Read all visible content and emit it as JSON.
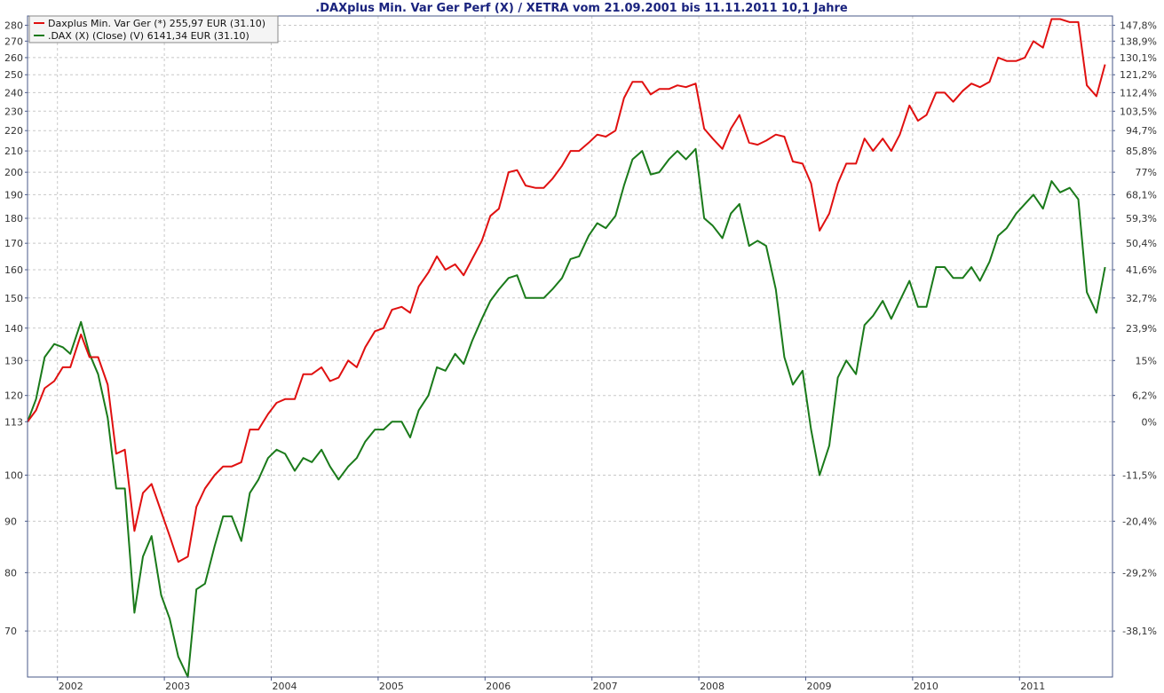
{
  "chart_data": {
    "type": "line",
    "title": ".DAXplus Min. Var Ger Perf (X) / XETRA vom 21.09.2001 bis 11.11.2011 10,1 Jahre",
    "x_range": [
      2001.72,
      2011.87
    ],
    "y_scale": "log",
    "ylim": [
      63,
      286
    ],
    "y_ticks": [
      70,
      80,
      90,
      100,
      113,
      120,
      130,
      140,
      150,
      160,
      170,
      180,
      190,
      200,
      210,
      220,
      230,
      240,
      250,
      260,
      270,
      280
    ],
    "y2_ticks": [
      "147,8%",
      "138,9%",
      "130,1%",
      "121,2%",
      "112,4%",
      "103,5%",
      "94,7%",
      "85,8%",
      "77%",
      "68,1%",
      "59,3%",
      "50,4%",
      "41,6%",
      "32,7%",
      "23,9%",
      "15%",
      "6,2%",
      "0%",
      "-11,5%",
      "-20,4%",
      "-29,2%",
      "-38,1%"
    ],
    "x_ticks": [
      {
        "label": "2002",
        "x": 2002.0
      },
      {
        "label": "2003",
        "x": 2003.0
      },
      {
        "label": "2004",
        "x": 2004.0
      },
      {
        "label": "2005",
        "x": 2005.0
      },
      {
        "label": "2006",
        "x": 2006.0
      },
      {
        "label": "2007",
        "x": 2007.0
      },
      {
        "label": "2008",
        "x": 2008.0
      },
      {
        "label": "2009",
        "x": 2009.0
      },
      {
        "label": "2010",
        "x": 2010.0
      },
      {
        "label": "2011",
        "x": 2011.0
      }
    ],
    "legend_position": "top-left",
    "grid": true,
    "series": [
      {
        "name": "Daxplus Min. Var Ger (*) 255,97 EUR (31.10)",
        "color": "#e01010",
        "x": [
          2001.72,
          2001.8,
          2001.88,
          2001.97,
          2002.05,
          2002.12,
          2002.22,
          2002.3,
          2002.38,
          2002.47,
          2002.55,
          2002.63,
          2002.72,
          2002.8,
          2002.88,
          2002.97,
          2003.05,
          2003.13,
          2003.22,
          2003.3,
          2003.38,
          2003.47,
          2003.55,
          2003.63,
          2003.72,
          2003.8,
          2003.88,
          2003.97,
          2004.05,
          2004.13,
          2004.22,
          2004.3,
          2004.38,
          2004.47,
          2004.55,
          2004.63,
          2004.72,
          2004.8,
          2004.88,
          2004.97,
          2005.05,
          2005.13,
          2005.22,
          2005.3,
          2005.38,
          2005.47,
          2005.55,
          2005.63,
          2005.72,
          2005.8,
          2005.88,
          2005.97,
          2006.05,
          2006.13,
          2006.22,
          2006.3,
          2006.38,
          2006.47,
          2006.55,
          2006.63,
          2006.72,
          2006.8,
          2006.88,
          2006.97,
          2007.05,
          2007.13,
          2007.22,
          2007.3,
          2007.38,
          2007.47,
          2007.55,
          2007.63,
          2007.72,
          2007.8,
          2007.88,
          2007.97,
          2008.05,
          2008.13,
          2008.22,
          2008.3,
          2008.38,
          2008.47,
          2008.55,
          2008.63,
          2008.72,
          2008.8,
          2008.88,
          2008.97,
          2009.05,
          2009.13,
          2009.22,
          2009.3,
          2009.38,
          2009.47,
          2009.55,
          2009.63,
          2009.72,
          2009.8,
          2009.88,
          2009.97,
          2010.05,
          2010.13,
          2010.22,
          2010.3,
          2010.38,
          2010.47,
          2010.55,
          2010.63,
          2010.72,
          2010.8,
          2010.88,
          2010.97,
          2011.05,
          2011.13,
          2011.22,
          2011.3,
          2011.38,
          2011.47,
          2011.55,
          2011.63,
          2011.72,
          2011.8
        ],
        "values": [
          113,
          116,
          122,
          124,
          128,
          128,
          138,
          131,
          131,
          123,
          105,
          106,
          88,
          96,
          98,
          92,
          87,
          82,
          83,
          93,
          97,
          100,
          102,
          102,
          103,
          111,
          111,
          115,
          118,
          119,
          119,
          126,
          126,
          128,
          124,
          125,
          130,
          128,
          134,
          139,
          140,
          146,
          147,
          145,
          154,
          159,
          165,
          160,
          162,
          158,
          164,
          171,
          181,
          184,
          200,
          201,
          194,
          193,
          193,
          197,
          203,
          210,
          210,
          214,
          218,
          217,
          220,
          237,
          246,
          246,
          239,
          242,
          242,
          244,
          243,
          245,
          221,
          216,
          211,
          221,
          228,
          214,
          213,
          215,
          218,
          217,
          205,
          204,
          195,
          175,
          182,
          195,
          204,
          204,
          216,
          210,
          216,
          210,
          218,
          233,
          225,
          228,
          240,
          240,
          235,
          241,
          245,
          243,
          246,
          260,
          258,
          258,
          260,
          270,
          266,
          284,
          284,
          282,
          282,
          244,
          238,
          256
        ]
      },
      {
        "name": ".DAX (X) (Close) (V) 6141,34 EUR (31.10)",
        "color": "#1a7a1a",
        "x": [
          2001.72,
          2001.8,
          2001.88,
          2001.97,
          2002.05,
          2002.12,
          2002.22,
          2002.3,
          2002.38,
          2002.47,
          2002.55,
          2002.63,
          2002.72,
          2002.8,
          2002.88,
          2002.97,
          2003.05,
          2003.13,
          2003.22,
          2003.3,
          2003.38,
          2003.47,
          2003.55,
          2003.63,
          2003.72,
          2003.8,
          2003.88,
          2003.97,
          2004.05,
          2004.13,
          2004.22,
          2004.3,
          2004.38,
          2004.47,
          2004.55,
          2004.63,
          2004.72,
          2004.8,
          2004.88,
          2004.97,
          2005.05,
          2005.13,
          2005.22,
          2005.3,
          2005.38,
          2005.47,
          2005.55,
          2005.63,
          2005.72,
          2005.8,
          2005.88,
          2005.97,
          2006.05,
          2006.13,
          2006.22,
          2006.3,
          2006.38,
          2006.47,
          2006.55,
          2006.63,
          2006.72,
          2006.8,
          2006.88,
          2006.97,
          2007.05,
          2007.13,
          2007.22,
          2007.3,
          2007.38,
          2007.47,
          2007.55,
          2007.63,
          2007.72,
          2007.8,
          2007.88,
          2007.97,
          2008.05,
          2008.13,
          2008.22,
          2008.3,
          2008.38,
          2008.47,
          2008.55,
          2008.63,
          2008.72,
          2008.8,
          2008.88,
          2008.97,
          2009.05,
          2009.13,
          2009.22,
          2009.3,
          2009.38,
          2009.47,
          2009.55,
          2009.63,
          2009.72,
          2009.8,
          2009.88,
          2009.97,
          2010.05,
          2010.13,
          2010.22,
          2010.3,
          2010.38,
          2010.47,
          2010.55,
          2010.63,
          2010.72,
          2010.8,
          2010.88,
          2010.97,
          2011.05,
          2011.13,
          2011.22,
          2011.3,
          2011.38,
          2011.47,
          2011.55,
          2011.63,
          2011.72,
          2011.8
        ],
        "values": [
          113,
          119,
          131,
          135,
          134,
          132,
          142,
          132,
          126,
          114,
          97,
          97,
          73,
          83,
          87,
          76,
          72,
          66,
          63,
          77,
          78,
          85,
          91,
          91,
          86,
          96,
          99,
          104,
          106,
          105,
          101,
          104,
          103,
          106,
          102,
          99,
          102,
          104,
          108,
          111,
          111,
          113,
          113,
          109,
          116,
          120,
          128,
          127,
          132,
          129,
          136,
          143,
          149,
          153,
          157,
          158,
          150,
          150,
          150,
          153,
          157,
          164,
          165,
          173,
          178,
          176,
          181,
          194,
          206,
          210,
          199,
          200,
          206,
          210,
          206,
          211,
          180,
          177,
          172,
          182,
          186,
          169,
          171,
          169,
          153,
          131,
          123,
          127,
          111,
          100,
          107,
          125,
          130,
          126,
          141,
          144,
          149,
          143,
          149,
          156,
          147,
          147,
          161,
          161,
          157,
          157,
          161,
          156,
          163,
          173,
          176,
          182,
          186,
          190,
          184,
          196,
          191,
          193,
          188,
          152,
          145,
          161
        ]
      }
    ]
  }
}
